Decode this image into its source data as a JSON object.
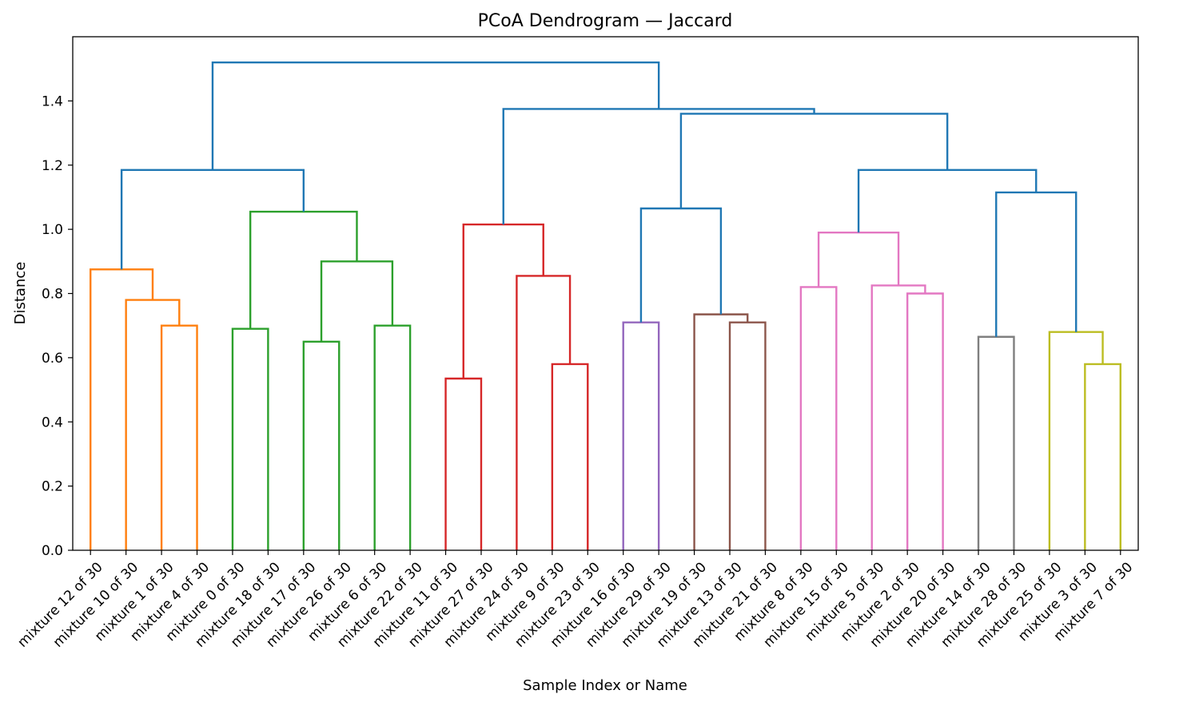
{
  "chart_data": {
    "type": "dendrogram",
    "title": "PCoA Dendrogram — Jaccard",
    "xlabel": "Sample Index or Name",
    "ylabel": "Distance",
    "ylim": [
      0,
      1.6
    ],
    "yticks": [
      0.0,
      0.2,
      0.4,
      0.6,
      0.8,
      1.0,
      1.2,
      1.4
    ],
    "ytick_labels": [
      "0.0",
      "0.2",
      "0.4",
      "0.6",
      "0.8",
      "1.0",
      "1.2",
      "1.4"
    ],
    "grid": false,
    "legend": "none",
    "leaves": [
      "mixture 12 of 30",
      "mixture 10 of 30",
      "mixture 1 of 30",
      "mixture 4 of 30",
      "mixture 0 of 30",
      "mixture 18 of 30",
      "mixture 17 of 30",
      "mixture 26 of 30",
      "mixture 6 of 30",
      "mixture 22 of 30",
      "mixture 11 of 30",
      "mixture 27 of 30",
      "mixture 24 of 30",
      "mixture 9 of 30",
      "mixture 23 of 30",
      "mixture 16 of 30",
      "mixture 29 of 30",
      "mixture 19 of 30",
      "mixture 13 of 30",
      "mixture 21 of 30",
      "mixture 8 of 30",
      "mixture 15 of 30",
      "mixture 5 of 30",
      "mixture 2 of 30",
      "mixture 20 of 30",
      "mixture 14 of 30",
      "mixture 28 of 30",
      "mixture 25 of 30",
      "mixture 3 of 30",
      "mixture 7 of 30"
    ],
    "colors": {
      "C0": "#1f77b4",
      "C1": "#ff7f0e",
      "C2": "#2ca02c",
      "C3": "#d62728",
      "C4": "#9467bd",
      "C5": "#8c564b",
      "C6": "#e377c2",
      "C7": "#7f7f7f",
      "C8": "#bcbd22"
    },
    "merges": [
      {
        "a": 2,
        "b": 3,
        "height": 0.7,
        "color": "C1"
      },
      {
        "a": 1,
        "b": 30,
        "height": 0.78,
        "color": "C1"
      },
      {
        "a": 0,
        "b": 31,
        "height": 0.875,
        "color": "C1"
      },
      {
        "a": 4,
        "b": 5,
        "height": 0.69,
        "color": "C2"
      },
      {
        "a": 6,
        "b": 7,
        "height": 0.65,
        "color": "C2"
      },
      {
        "a": 8,
        "b": 9,
        "height": 0.7,
        "color": "C2"
      },
      {
        "a": 34,
        "b": 35,
        "height": 0.9,
        "color": "C2"
      },
      {
        "a": 33,
        "b": 36,
        "height": 1.055,
        "color": "C2"
      },
      {
        "a": 32,
        "b": 37,
        "height": 1.185,
        "color": "C0"
      },
      {
        "a": 10,
        "b": 11,
        "height": 0.535,
        "color": "C3"
      },
      {
        "a": 13,
        "b": 14,
        "height": 0.58,
        "color": "C3"
      },
      {
        "a": 12,
        "b": 40,
        "height": 0.855,
        "color": "C3"
      },
      {
        "a": 39,
        "b": 41,
        "height": 1.015,
        "color": "C3"
      },
      {
        "a": 15,
        "b": 16,
        "height": 0.71,
        "color": "C4"
      },
      {
        "a": 18,
        "b": 19,
        "height": 0.71,
        "color": "C5"
      },
      {
        "a": 17,
        "b": 44,
        "height": 0.735,
        "color": "C5"
      },
      {
        "a": 43,
        "b": 45,
        "height": 1.065,
        "color": "C0"
      },
      {
        "a": 20,
        "b": 21,
        "height": 0.82,
        "color": "C6"
      },
      {
        "a": 23,
        "b": 24,
        "height": 0.8,
        "color": "C6"
      },
      {
        "a": 22,
        "b": 48,
        "height": 0.825,
        "color": "C6"
      },
      {
        "a": 47,
        "b": 49,
        "height": 0.99,
        "color": "C6"
      },
      {
        "a": 25,
        "b": 26,
        "height": 0.665,
        "color": "C7"
      },
      {
        "a": 28,
        "b": 29,
        "height": 0.58,
        "color": "C8"
      },
      {
        "a": 27,
        "b": 52,
        "height": 0.68,
        "color": "C8"
      },
      {
        "a": 51,
        "b": 53,
        "height": 1.115,
        "color": "C0"
      },
      {
        "a": 50,
        "b": 54,
        "height": 1.185,
        "color": "C0"
      },
      {
        "a": 46,
        "b": 55,
        "height": 1.36,
        "color": "C0"
      },
      {
        "a": 42,
        "b": 56,
        "height": 1.375,
        "color": "C0"
      },
      {
        "a": 38,
        "b": 57,
        "height": 1.52,
        "color": "C0"
      }
    ]
  }
}
